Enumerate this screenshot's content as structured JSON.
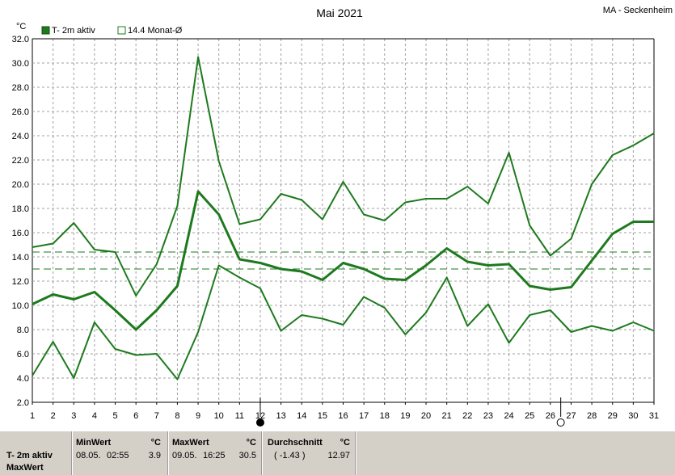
{
  "chart_data": {
    "type": "line",
    "title": "Mai 2021",
    "station": "MA - Seckenheim",
    "unit": "°C",
    "ylim": [
      2.0,
      32.0
    ],
    "y_ticks": [
      "2.0",
      "4.0",
      "6.0",
      "8.0",
      "10.0",
      "12.0",
      "14.0",
      "16.0",
      "18.0",
      "20.0",
      "22.0",
      "24.0",
      "26.0",
      "28.0",
      "30.0",
      "32.0"
    ],
    "x_ticks": [
      "1",
      "2",
      "3",
      "4",
      "5",
      "6",
      "7",
      "8",
      "9",
      "10",
      "11",
      "12",
      "13",
      "14",
      "15",
      "16",
      "17",
      "18",
      "19",
      "20",
      "21",
      "22",
      "23",
      "24",
      "25",
      "26",
      "27",
      "28",
      "29",
      "30",
      "31"
    ],
    "x": [
      1,
      2,
      3,
      4,
      5,
      6,
      7,
      8,
      9,
      10,
      11,
      12,
      13,
      14,
      15,
      16,
      17,
      18,
      19,
      20,
      21,
      22,
      23,
      24,
      25,
      26,
      27,
      28,
      29,
      30,
      31
    ],
    "legend": [
      {
        "label": "T- 2m aktiv",
        "filled": true
      },
      {
        "label": "14.4 Monat-Ø",
        "filled": false
      }
    ],
    "series": [
      {
        "name": "T- 2m aktiv",
        "role": "max",
        "color": "#1e7a1e",
        "width": 2,
        "values": [
          14.8,
          15.1,
          16.8,
          14.6,
          14.4,
          10.8,
          13.4,
          18.2,
          30.5,
          21.9,
          16.7,
          17.1,
          19.2,
          18.7,
          17.1,
          20.2,
          17.5,
          17.0,
          18.5,
          18.8,
          18.8,
          19.8,
          18.4,
          22.6,
          16.6,
          14.1,
          15.5,
          20.0,
          22.4,
          23.2,
          24.2
        ]
      },
      {
        "role": "mean",
        "color": "#1e7a1e",
        "width": 3,
        "values": [
          10.1,
          10.9,
          10.5,
          11.1,
          9.6,
          8.0,
          9.6,
          11.6,
          19.4,
          17.5,
          13.8,
          13.5,
          13.0,
          12.8,
          12.1,
          13.5,
          13.0,
          12.2,
          12.1,
          13.3,
          14.7,
          13.6,
          13.3,
          13.4,
          11.6,
          11.3,
          11.5,
          13.7,
          15.9,
          16.9,
          16.9
        ]
      },
      {
        "role": "min",
        "color": "#1e7a1e",
        "width": 2,
        "values": [
          4.2,
          7.0,
          4.0,
          8.6,
          6.4,
          5.9,
          6.0,
          3.9,
          7.8,
          13.3,
          12.3,
          11.4,
          7.9,
          9.2,
          8.9,
          8.4,
          10.7,
          9.8,
          7.6,
          9.4,
          12.3,
          8.3,
          10.1,
          6.9,
          9.2,
          9.6,
          7.8,
          8.3,
          7.9,
          8.6,
          7.9
        ]
      }
    ],
    "reference_lines": [
      {
        "name": "14.4 Monat-Ø",
        "value": 14.4,
        "style": "dashed"
      },
      {
        "value": 13.0,
        "style": "dashed"
      }
    ],
    "moon_markers": [
      {
        "day": 12,
        "phase": "new",
        "fill": "#000000"
      },
      {
        "day": 26.5,
        "phase": "full",
        "fill": "#ffffff"
      }
    ],
    "colors": {
      "line": "#1e7a1e",
      "grid": "#a0a0a0",
      "ref": "#1e7a1e"
    }
  },
  "footer": {
    "row_label_1": "T- 2m aktiv",
    "row_label_2": "MaxWert",
    "min": {
      "title": "MinWert",
      "unit": "°C",
      "date": "08.05.",
      "time": "02:55",
      "value": "3.9"
    },
    "max": {
      "title": "MaxWert",
      "unit": "°C",
      "date": "09.05.",
      "time": "16:25",
      "value": "30.5"
    },
    "avg": {
      "title": "Durchschnitt",
      "unit": "°C",
      "deviation": "( -1.43 )",
      "value": "12.97"
    }
  }
}
